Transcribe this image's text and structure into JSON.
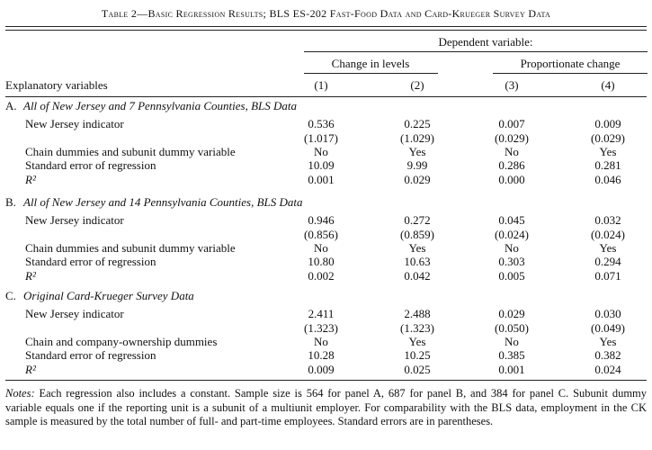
{
  "title": "Table 2—Basic Regression Results; BLS ES-202 Fast-Food Data and Card-Krueger Survey Data",
  "header": {
    "dependent": "Dependent variable:",
    "groups": [
      "Change in levels",
      "Proportionate change"
    ],
    "stub": "Explanatory variables",
    "columns": [
      "(1)",
      "(2)",
      "(3)",
      "(4)"
    ]
  },
  "panels": [
    {
      "label": "A.",
      "title": "All of New Jersey and 7 Pennsylvania Counties, BLS Data",
      "rows": [
        {
          "label": "New Jersey indicator",
          "values": [
            "0.536",
            "0.225",
            "0.007",
            "0.009"
          ],
          "se": [
            "(1.017)",
            "(1.029)",
            "(0.029)",
            "(0.029)"
          ]
        },
        {
          "label": "Chain dummies and subunit dummy variable",
          "values": [
            "No",
            "Yes",
            "No",
            "Yes"
          ]
        },
        {
          "label": "Standard error of regression",
          "values": [
            "10.09",
            "9.99",
            "0.286",
            "0.281"
          ]
        },
        {
          "label": "R²",
          "values": [
            "0.001",
            "0.029",
            "0.000",
            "0.046"
          ]
        }
      ]
    },
    {
      "label": "B.",
      "title": "All of New Jersey and 14 Pennsylvania Counties, BLS Data",
      "rows": [
        {
          "label": "New Jersey indicator",
          "values": [
            "0.946",
            "0.272",
            "0.045",
            "0.032"
          ],
          "se": [
            "(0.856)",
            "(0.859)",
            "(0.024)",
            "(0.024)"
          ]
        },
        {
          "label": "Chain dummies and subunit dummy variable",
          "values": [
            "No",
            "Yes",
            "No",
            "Yes"
          ]
        },
        {
          "label": "Standard error of regression",
          "values": [
            "10.80",
            "10.63",
            "0.303",
            "0.294"
          ]
        },
        {
          "label": "R²",
          "values": [
            "0.002",
            "0.042",
            "0.005",
            "0.071"
          ]
        }
      ]
    },
    {
      "label": "C.",
      "title": "Original Card-Krueger Survey Data",
      "rows": [
        {
          "label": "New Jersey indicator",
          "values": [
            "2.411",
            "2.488",
            "0.029",
            "0.030"
          ],
          "se": [
            "(1.323)",
            "(1.323)",
            "(0.050)",
            "(0.049)"
          ]
        },
        {
          "label": "Chain and company-ownership dummies",
          "values": [
            "No",
            "Yes",
            "No",
            "Yes"
          ]
        },
        {
          "label": "Standard error of regression",
          "values": [
            "10.28",
            "10.25",
            "0.385",
            "0.382"
          ]
        },
        {
          "label": "R²",
          "values": [
            "0.009",
            "0.025",
            "0.001",
            "0.024"
          ]
        }
      ]
    }
  ],
  "notes": {
    "label": "Notes:",
    "text": "Each regression also includes a constant. Sample size is 564 for panel A, 687 for panel B, and 384 for panel C. Subunit dummy variable equals one if the reporting unit is a subunit of a multiunit employer. For comparability with the BLS data, employment in the CK sample is measured by the total number of full- and part-time employees. Standard errors are in parentheses."
  }
}
